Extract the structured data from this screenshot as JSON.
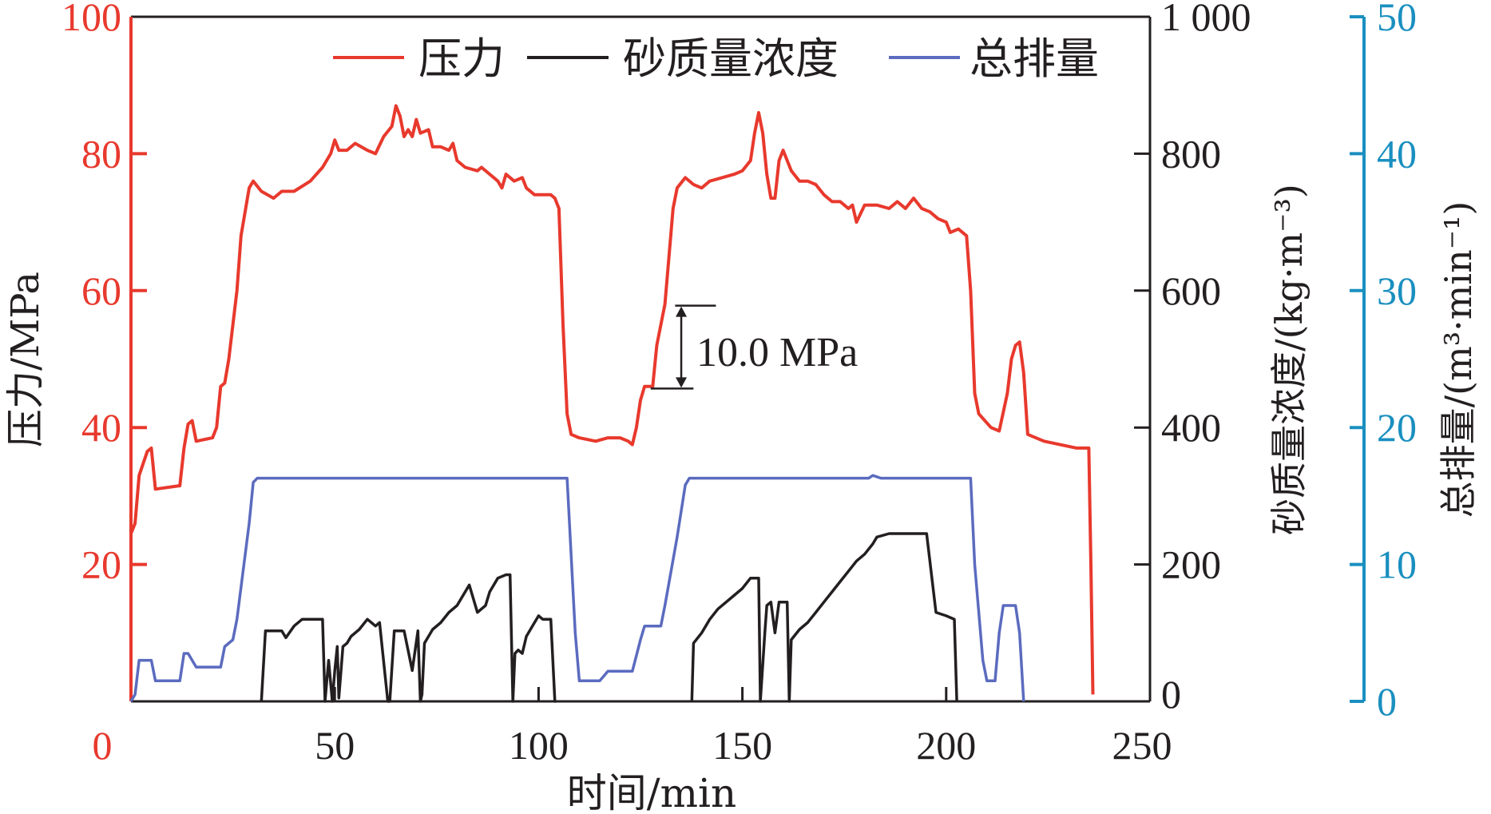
{
  "chart_data": {
    "type": "line",
    "title": "",
    "xlabel": "时间/min",
    "xlim": [
      0,
      250
    ],
    "xticks": [
      0,
      50,
      100,
      150,
      200,
      250
    ],
    "xtick_labels": [
      "0",
      "50",
      "100",
      "150",
      "200",
      "250"
    ],
    "axes": [
      {
        "id": "pressure",
        "side": "left",
        "label": "压力/MPa",
        "range": [
          0,
          100
        ],
        "ticks": [
          0,
          20,
          40,
          60,
          80,
          100
        ],
        "tick_labels": [
          "0",
          "20",
          "40",
          "60",
          "80",
          "100"
        ],
        "color": "#e8392d"
      },
      {
        "id": "sand",
        "side": "right",
        "label": "砂质量浓度/(kg·m⁻³)",
        "range": [
          0,
          1000
        ],
        "ticks": [
          0,
          200,
          400,
          600,
          800,
          1000
        ],
        "tick_labels": [
          "0",
          "200",
          "400",
          "600",
          "800",
          "1 000"
        ],
        "color": "#231f20"
      },
      {
        "id": "rate",
        "side": "far-right",
        "label": "总排量/(m³·min⁻¹)",
        "range": [
          0,
          50
        ],
        "ticks": [
          0,
          10,
          20,
          30,
          40,
          50
        ],
        "tick_labels": [
          "0",
          "10",
          "20",
          "30",
          "40",
          "50"
        ],
        "color": "#1a8fc0"
      }
    ],
    "legend": {
      "placement": "top-right",
      "entries": [
        "压力",
        "砂质量浓度",
        "总排量"
      ]
    },
    "annotation": {
      "text": "10.0 MPa",
      "x": 135,
      "y_from": 45.7,
      "y_to": 57.8
    },
    "series": [
      {
        "name": "压力",
        "axis": "pressure",
        "color": "#e8392d",
        "x": [
          0,
          1,
          2,
          4,
          5,
          6,
          12,
          13,
          14,
          15,
          16,
          20,
          21,
          22,
          23,
          24,
          26,
          27,
          29,
          30,
          32,
          35,
          37,
          40,
          44,
          47,
          49,
          50,
          51,
          53,
          55,
          58,
          60,
          62,
          64,
          65,
          66,
          67,
          68,
          69,
          70,
          71,
          73,
          74,
          76,
          78,
          79,
          80,
          82,
          85,
          86,
          88,
          90,
          91,
          92,
          94,
          96,
          97,
          99,
          101,
          103,
          104,
          105,
          106,
          107,
          108,
          110,
          114,
          117,
          120,
          122,
          123,
          124,
          125,
          126,
          128,
          129,
          130,
          131,
          132,
          133,
          134,
          136,
          138,
          140,
          142,
          145,
          148,
          150,
          152,
          153,
          154,
          155,
          156,
          157,
          158,
          159,
          160,
          162,
          164,
          166,
          168,
          170,
          172,
          174,
          176,
          177,
          178,
          180,
          183,
          186,
          188,
          190,
          192,
          194,
          196,
          198,
          200,
          201,
          203,
          205,
          206,
          207,
          208,
          211,
          213,
          215,
          216,
          217,
          218,
          219,
          220,
          224,
          232,
          235,
          235.5,
          236
        ],
        "y": [
          24.5,
          26,
          33,
          36.5,
          37,
          31,
          31.5,
          37,
          40.5,
          41,
          38,
          38.5,
          40,
          46,
          46.5,
          50,
          60,
          68,
          75,
          76,
          74.5,
          73.5,
          74.5,
          74.5,
          76,
          78,
          80,
          82,
          80.5,
          80.5,
          81.5,
          80.5,
          80,
          82.5,
          84,
          87,
          85.5,
          82.5,
          83.5,
          82.5,
          85,
          83,
          83.5,
          81,
          81,
          80.5,
          81.5,
          79,
          78,
          77.5,
          78,
          77,
          76,
          75,
          77,
          76,
          76.5,
          75,
          74,
          74,
          74,
          73.5,
          72,
          55,
          42,
          39,
          38.5,
          38,
          38.5,
          38.5,
          38,
          37.5,
          40,
          44,
          46,
          46,
          52,
          55,
          58,
          65,
          72,
          75,
          76.5,
          75.5,
          75,
          76,
          76.5,
          77,
          77.5,
          79,
          83,
          86,
          83,
          77,
          73.5,
          73.5,
          79,
          80.5,
          77.5,
          76,
          76,
          75.5,
          74,
          73,
          73,
          72,
          72.5,
          70,
          72.5,
          72.5,
          72,
          73,
          72,
          73.5,
          72,
          71.5,
          70.5,
          70,
          68.5,
          69,
          68,
          60,
          45,
          42,
          40,
          39.5,
          45,
          50,
          52,
          52.5,
          48,
          39,
          38,
          37,
          37,
          20,
          1
        ]
      },
      {
        "name": "砂质量浓度",
        "axis": "sand",
        "color": "#231f20",
        "segments": [
          {
            "x": [
              32,
              33,
              37,
              38,
              40,
              42,
              47,
              47.6,
              48.5,
              49.4,
              50,
              50.6,
              51,
              52,
              53,
              54,
              56,
              58,
              60,
              61,
              63,
              63.5,
              64.6,
              65.5,
              67,
              69,
              70.4,
              71,
              71.4,
              72,
              73,
              74,
              76,
              78,
              80,
              83,
              85,
              87,
              88,
              90,
              92,
              93,
              93.7,
              94.2,
              95,
              96,
              97,
              98,
              99,
              100,
              101,
              103,
              104,
              104.2
            ],
            "y": [
              0,
              103,
              103,
              93,
              110,
              120,
              120,
              0,
              60,
              0,
              45,
              80,
              5,
              80,
              85,
              95,
              105,
              120,
              110,
              115,
              0,
              0,
              103,
              103,
              103,
              45,
              103,
              0,
              10,
              85,
              95,
              105,
              115,
              130,
              140,
              170,
              130,
              140,
              160,
              180,
              185,
              185,
              0,
              70,
              75,
              70,
              95,
              105,
              115,
              125,
              120,
              120,
              0,
              0
            ]
          },
          {
            "x": [
              137.6,
              138,
              140,
              142,
              144,
              147,
              150,
              152,
              154,
              154.4,
              155.5,
              156,
              157,
              158,
              159,
              160,
              161,
              161.5,
              162,
              164,
              166,
              168,
              170,
              172,
              174,
              176,
              178,
              180,
              182,
              183,
              186,
              195.2,
              197.5,
              200,
              202,
              202.6
            ],
            "y": [
              0,
              85,
              100,
              120,
              135,
              150,
              165,
              180,
              180,
              0,
              100,
              140,
              145,
              100,
              145,
              145,
              145,
              0,
              90,
              105,
              115,
              130,
              145,
              160,
              175,
              190,
              205,
              215,
              230,
              240,
              245,
              245,
              130,
              125,
              120,
              0
            ]
          }
        ]
      },
      {
        "name": "总排量",
        "axis": "rate",
        "color": "#5b6bbf",
        "x": [
          0,
          1,
          2,
          5,
          6,
          12,
          13,
          14,
          16,
          22,
          23,
          25,
          26,
          29,
          30,
          31,
          107,
          109,
          110,
          115,
          117,
          123,
          125,
          126,
          130,
          131,
          134,
          136,
          137,
          181,
          182,
          184,
          206,
          207,
          209,
          210,
          212,
          213,
          214,
          217,
          218,
          219
        ],
        "y": [
          0,
          0.5,
          3,
          3,
          1.5,
          1.5,
          3.5,
          3.5,
          2.5,
          2.5,
          4,
          4.5,
          6,
          13,
          16,
          16.3,
          16.3,
          5,
          1.5,
          1.5,
          2.2,
          2.2,
          4.5,
          5.5,
          5.5,
          7,
          12,
          15.8,
          16.3,
          16.3,
          16.5,
          16.3,
          16.3,
          10,
          3,
          1.5,
          1.5,
          5,
          7,
          7,
          5,
          0
        ]
      }
    ]
  }
}
